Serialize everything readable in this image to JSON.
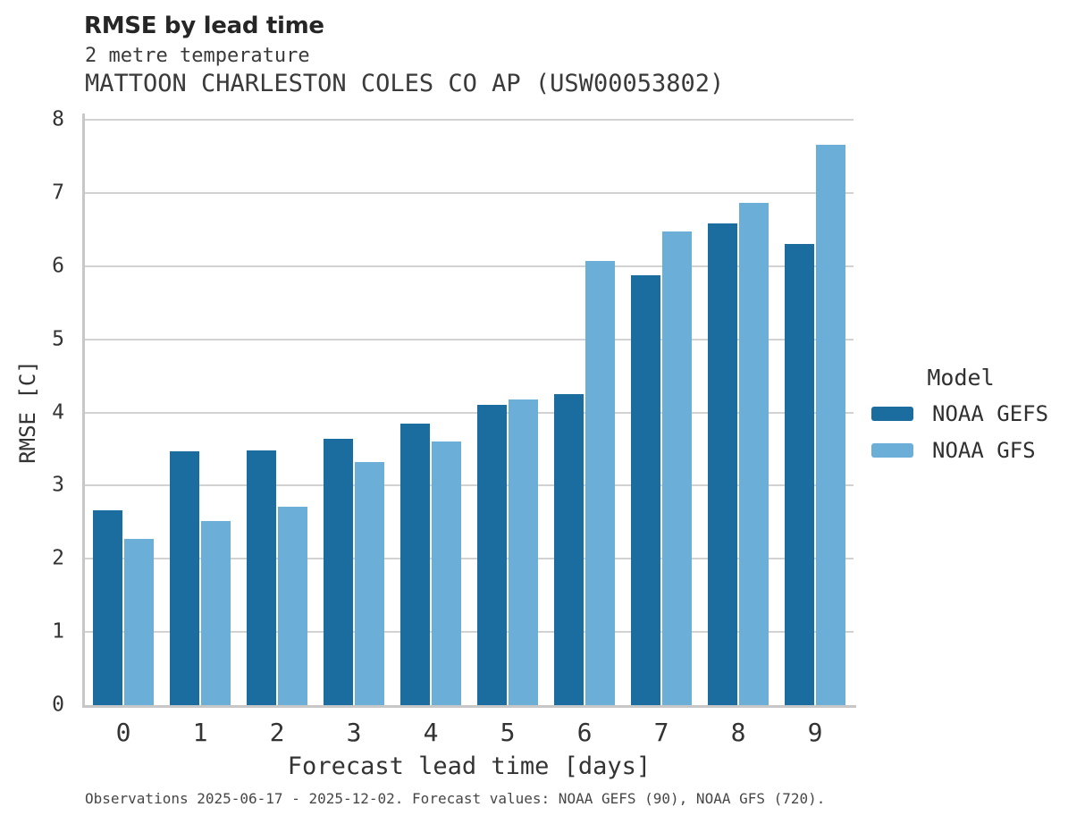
{
  "header": {
    "title": "RMSE by lead time",
    "subtitle": "2 metre temperature",
    "station": "MATTOON CHARLESTON COLES CO AP (USW00053802)"
  },
  "chart_data": {
    "type": "bar",
    "title": "RMSE by lead time",
    "subtitle": "2 metre temperature",
    "station": "MATTOON CHARLESTON COLES CO AP (USW00053802)",
    "categories": [
      "0",
      "1",
      "2",
      "3",
      "4",
      "5",
      "6",
      "7",
      "8",
      "9"
    ],
    "series": [
      {
        "name": "NOAA GEFS",
        "color": "#1a6d9e",
        "values": [
          2.66,
          3.47,
          3.48,
          3.64,
          3.85,
          4.11,
          4.25,
          5.87,
          6.58,
          6.3
        ]
      },
      {
        "name": "NOAA GFS",
        "color": "#6bafd8",
        "values": [
          2.27,
          2.52,
          2.71,
          3.32,
          3.6,
          4.18,
          6.07,
          6.47,
          6.87,
          7.66
        ]
      }
    ],
    "xlabel": "Forecast lead time [days]",
    "ylabel": "RMSE [C]",
    "ylim": [
      0,
      8
    ],
    "yticks": [
      0,
      1,
      2,
      3,
      4,
      5,
      6,
      7,
      8
    ],
    "grid": true,
    "legend_title": "Model",
    "legend_position": "right"
  },
  "legend": {
    "title": "Model",
    "items": [
      {
        "label": "NOAA GEFS",
        "color": "#1a6d9e"
      },
      {
        "label": "NOAA GFS",
        "color": "#6bafd8"
      }
    ]
  },
  "footer": {
    "note": "Observations 2025-06-17 - 2025-12-02. Forecast values: NOAA GEFS (90), NOAA GFS (720)."
  },
  "colors": {
    "grid": "#d2d2d2",
    "spine": "#c7c7c7",
    "background": "#ffffff"
  }
}
